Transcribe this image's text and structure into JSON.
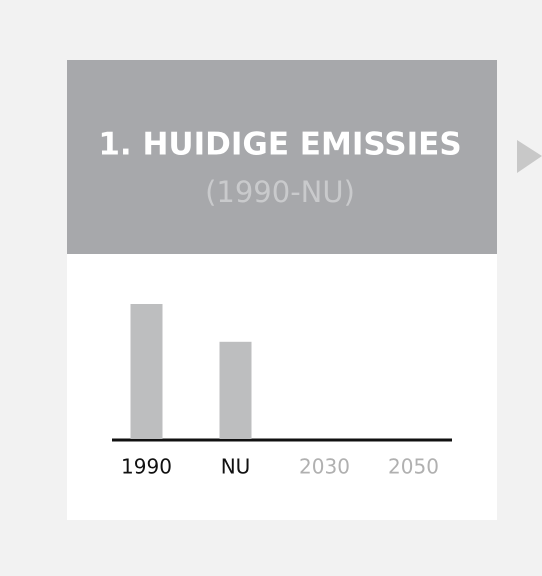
{
  "chart_data": {
    "type": "bar",
    "title": "1. HUIDIGE EMISSIES",
    "subtitle": "(1990-NU)",
    "categories": [
      "1990",
      "NU",
      "2030",
      "2050"
    ],
    "values": [
      100,
      72,
      null,
      null
    ],
    "color": "#bdbebf",
    "ylim": [
      0,
      100
    ]
  }
}
